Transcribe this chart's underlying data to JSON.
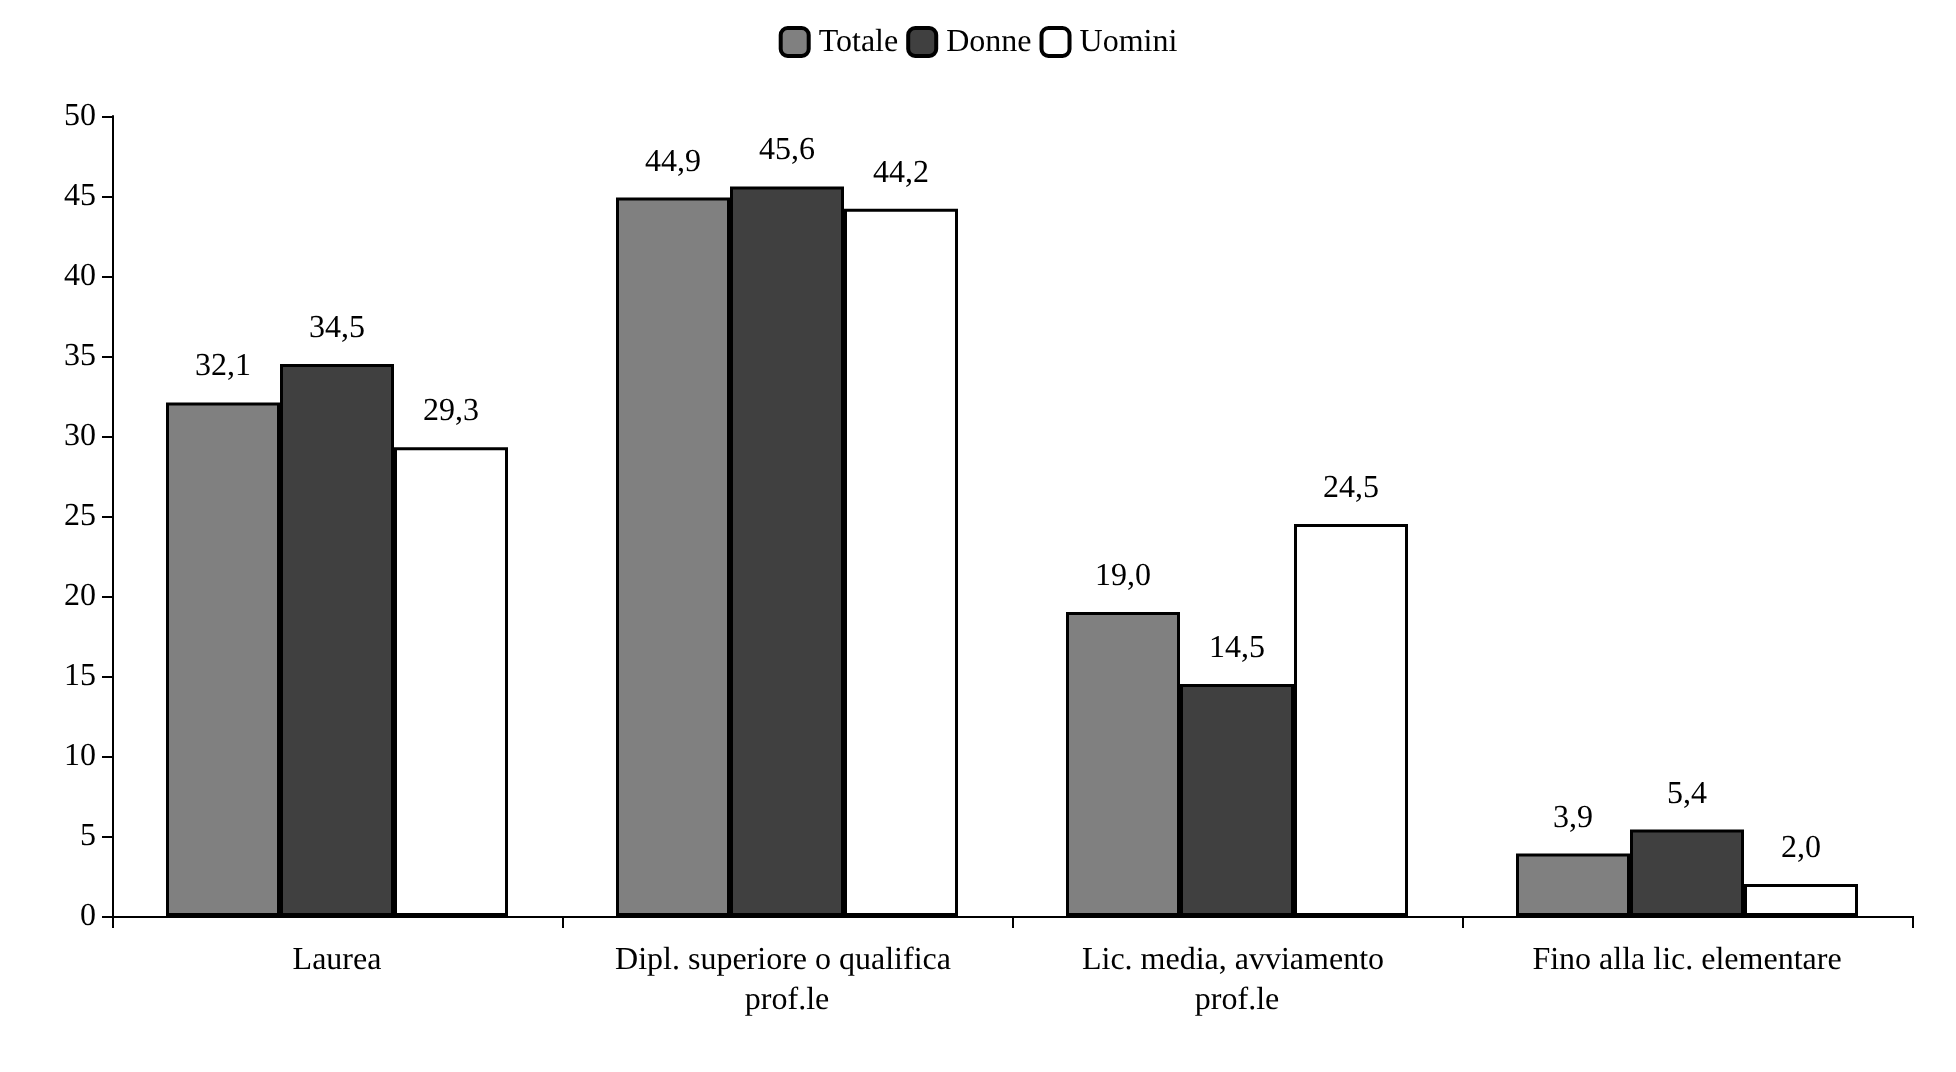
{
  "chart_data": {
    "type": "bar",
    "categories": [
      "Laurea",
      "Dipl. superiore o qualifica prof.le",
      "Lic. media, avviamento prof.le",
      "Fino alla lic. elementare"
    ],
    "series": [
      {
        "name": "Totale",
        "color": "#808080",
        "values": [
          32.1,
          44.9,
          19.0,
          3.9
        ],
        "value_labels": [
          "32,1",
          "44,9",
          "19,0",
          "3,9"
        ]
      },
      {
        "name": "Donne",
        "color": "#404040",
        "values": [
          34.5,
          45.6,
          14.5,
          5.4
        ],
        "value_labels": [
          "34,5",
          "45,6",
          "14,5",
          "5,4"
        ]
      },
      {
        "name": "Uomini",
        "color": "#ffffff",
        "values": [
          29.3,
          44.2,
          24.5,
          2.0
        ],
        "value_labels": [
          "29,3",
          "44,2",
          "24,5",
          "2,0"
        ]
      }
    ],
    "ylim": [
      0,
      50
    ],
    "yticks": [
      0,
      5,
      10,
      15,
      20,
      25,
      30,
      35,
      40,
      45,
      50
    ],
    "grid": false,
    "legend": "top"
  }
}
